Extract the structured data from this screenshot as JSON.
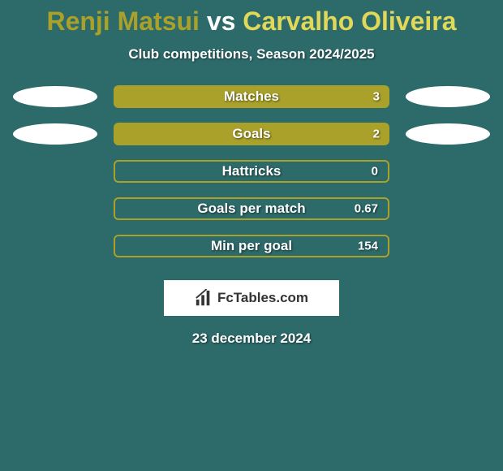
{
  "background_color": "#2d6a6a",
  "title": {
    "player1": "Renji Matsui",
    "vs": "vs",
    "player2": "Carvalho Oliveira",
    "color_p1": "#a9a12a",
    "color_vs": "#ffffff",
    "color_p2": "#e0d858"
  },
  "subtitle": "Club competitions, Season 2024/2025",
  "bar_colors": {
    "fill": "#a9a12a",
    "outline": "#a9a12a"
  },
  "rows": [
    {
      "label": "Matches",
      "value": "3",
      "filled": true,
      "left_ellipse": true,
      "right_ellipse": true
    },
    {
      "label": "Goals",
      "value": "2",
      "filled": true,
      "left_ellipse": true,
      "right_ellipse": true
    },
    {
      "label": "Hattricks",
      "value": "0",
      "filled": false,
      "left_ellipse": false,
      "right_ellipse": false
    },
    {
      "label": "Goals per match",
      "value": "0.67",
      "filled": false,
      "left_ellipse": false,
      "right_ellipse": false
    },
    {
      "label": "Min per goal",
      "value": "154",
      "filled": false,
      "left_ellipse": false,
      "right_ellipse": false
    }
  ],
  "logo": {
    "text": "FcTables.com",
    "icon_name": "bar-chart-icon"
  },
  "date": "23 december 2024"
}
